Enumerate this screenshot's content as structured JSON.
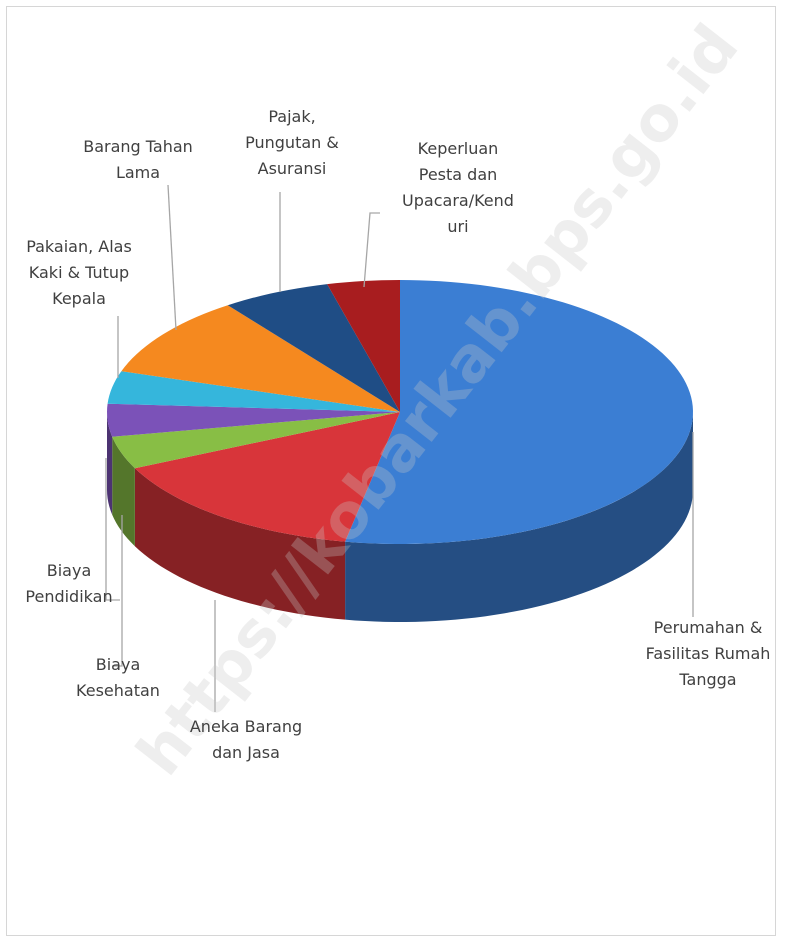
{
  "chart_data": {
    "type": "pie3d",
    "categories": [
      "Perumahan & Fasilitas Rumah Tangga",
      "Aneka Barang dan Jasa",
      "Biaya Kesehatan",
      "Biaya Pendidikan",
      "Pakaian, Alas Kaki  & Tutup Kepala",
      "Barang Tahan Lama",
      "Pajak, Pungutan  & Asuransi",
      "Keperluan Pesta dan Upacara/Kenduri"
    ],
    "values": [
      53,
      15,
      4,
      4,
      4,
      10,
      6,
      4
    ],
    "colors": [
      "#3b7ed3",
      "#d8353a",
      "#88be45",
      "#7b52b8",
      "#35b6dc",
      "#f5891f",
      "#1f4d85",
      "#a81d1f"
    ],
    "watermark": "https://kobarkab.bps.go.id"
  }
}
